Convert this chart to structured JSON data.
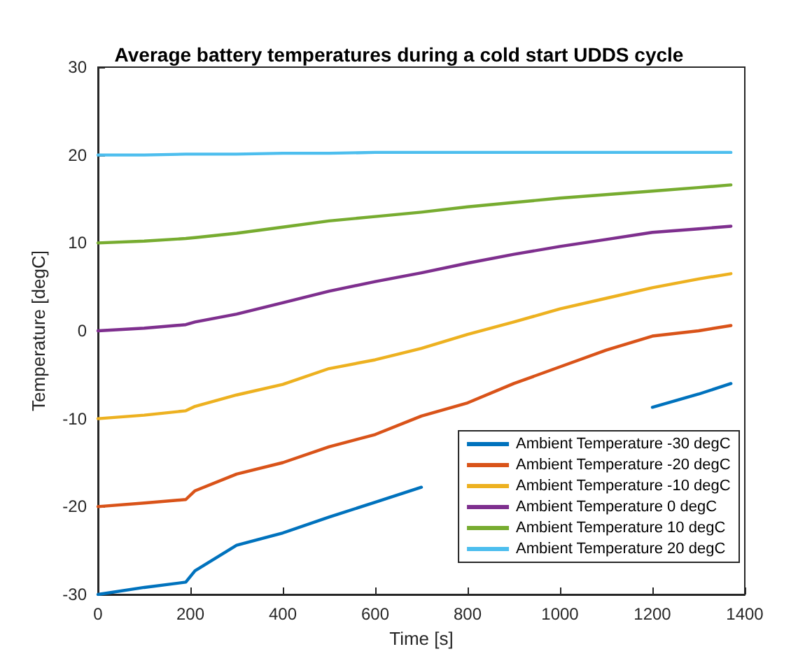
{
  "chart_data": {
    "type": "line",
    "title": "Average battery temperatures during a cold start UDDS cycle",
    "xlabel": "Time [s]",
    "ylabel": "Temperature [degC]",
    "xlim": [
      0,
      1400
    ],
    "xticks": [
      0,
      200,
      400,
      600,
      800,
      1000,
      1200,
      1400
    ],
    "ylim": [
      -30,
      30
    ],
    "yticks": [
      -30,
      -20,
      -10,
      0,
      10,
      20,
      30
    ],
    "grid": false,
    "legend": "bottom right",
    "marker": "none",
    "line_style": "solid",
    "x": [
      0,
      100,
      190,
      210,
      300,
      400,
      500,
      600,
      700,
      800,
      900,
      1000,
      1100,
      1200,
      1300,
      1370
    ],
    "series": [
      {
        "name": "Ambient Temperature -30 degC",
        "color": "#0072bd",
        "values": [
          -30,
          -29.2,
          -28.6,
          -27.3,
          -24.4,
          -23,
          -21.2,
          -19.5,
          -17.8,
          null,
          null,
          null,
          null,
          -8.7,
          -7.2,
          -6
        ]
      },
      {
        "name": "Ambient Temperature -20 degC",
        "color": "#d95319",
        "values": [
          -20,
          -19.6,
          -19.2,
          -18.2,
          -16.3,
          -15,
          -13.2,
          -11.8,
          -9.7,
          -8.2,
          -6,
          -4.1,
          -2.2,
          -0.6,
          0,
          0.6
        ]
      },
      {
        "name": "Ambient Temperature -10 degC",
        "color": "#edb120",
        "values": [
          -10,
          -9.6,
          -9.1,
          -8.6,
          -7.3,
          -6.1,
          -4.3,
          -3.3,
          -2,
          -0.4,
          1,
          2.5,
          3.7,
          4.9,
          5.9,
          6.5
        ]
      },
      {
        "name": "Ambient Temperature 0 degC",
        "color": "#7e2f8e",
        "values": [
          0,
          0.3,
          0.7,
          1,
          1.9,
          3.2,
          4.5,
          5.6,
          6.6,
          7.7,
          8.7,
          9.6,
          10.4,
          11.2,
          11.6,
          11.9
        ]
      },
      {
        "name": "Ambient Temperature 10 degC",
        "color": "#77ac30",
        "values": [
          10,
          10.2,
          10.5,
          10.6,
          11.1,
          11.8,
          12.5,
          13,
          13.5,
          14.1,
          14.6,
          15.1,
          15.5,
          15.9,
          16.3,
          16.6
        ]
      },
      {
        "name": "Ambient Temperature 20 degC",
        "color": "#4dbeee",
        "values": [
          20,
          20,
          20.1,
          20.1,
          20.1,
          20.2,
          20.2,
          20.3,
          20.3,
          20.3,
          20.3,
          20.3,
          20.3,
          20.3,
          20.3,
          20.3
        ]
      }
    ]
  }
}
